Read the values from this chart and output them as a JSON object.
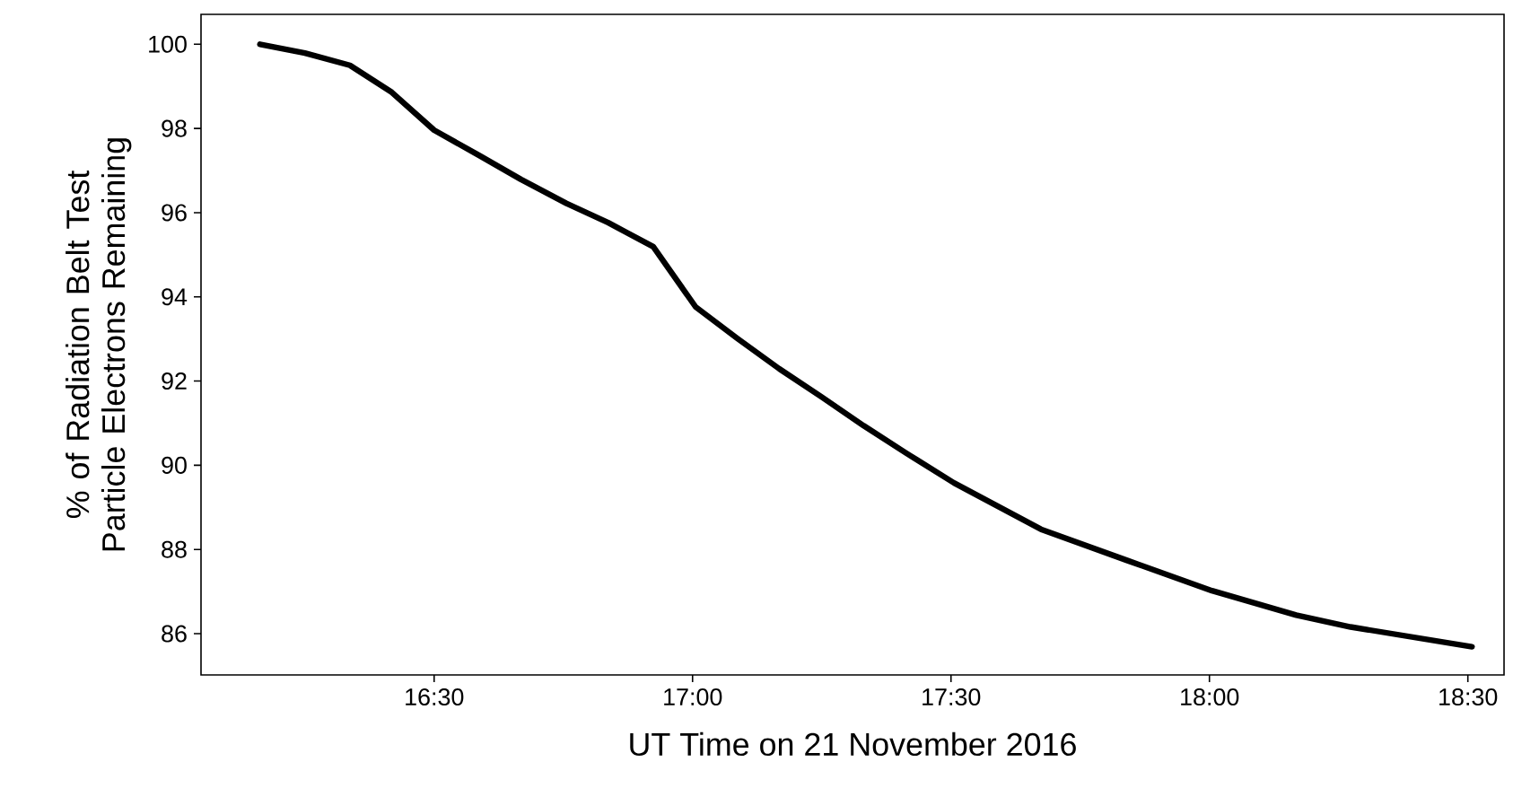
{
  "chart_data": {
    "type": "line",
    "xlabel": "UT Time on 21 November 2016",
    "ylabel": "% of Radiation Belt Test Particle Electrons Remaining",
    "x": [
      16.163,
      16.25,
      16.337,
      16.418,
      16.5,
      16.587,
      16.668,
      16.756,
      16.837,
      16.924,
      17.006,
      17.087,
      17.168,
      17.25,
      17.331,
      17.412,
      17.506,
      17.674,
      17.843,
      18.005,
      18.168,
      18.273,
      18.508
    ],
    "values": [
      100.0,
      99.79,
      99.5,
      98.86,
      97.96,
      97.36,
      96.79,
      96.22,
      95.76,
      95.19,
      93.76,
      93.01,
      92.29,
      91.62,
      90.94,
      90.3,
      89.58,
      88.48,
      87.73,
      87.02,
      86.44,
      86.16,
      85.69
    ],
    "color": "#000000",
    "xlim": [
      16.049,
      18.57
    ],
    "ylim": [
      85.02,
      100.71
    ],
    "xticks": [
      {
        "value": 16.5,
        "label": "16:30"
      },
      {
        "value": 17.0,
        "label": "17:00"
      },
      {
        "value": 17.5,
        "label": "17:30"
      },
      {
        "value": 18.0,
        "label": "18:00"
      },
      {
        "value": 18.5,
        "label": "18:30"
      }
    ],
    "yticks": [
      86,
      88,
      90,
      92,
      94,
      96,
      98,
      100
    ],
    "grid": false,
    "marker": "none",
    "line_style": "solid"
  }
}
